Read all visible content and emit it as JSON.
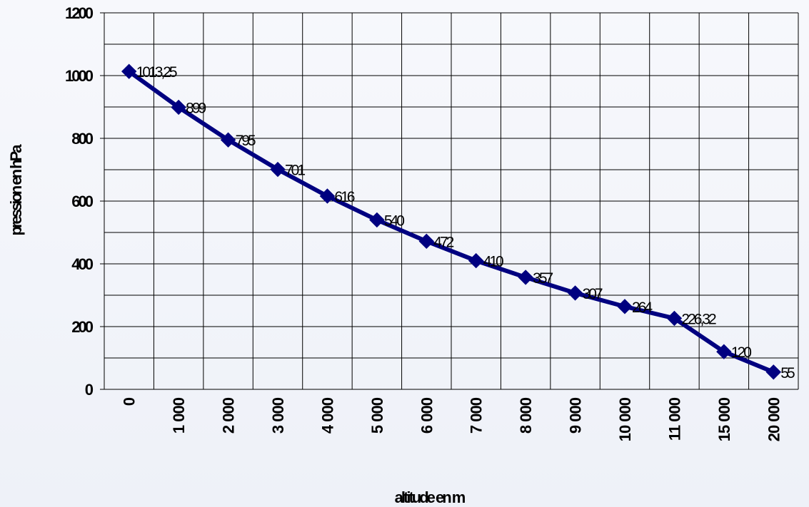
{
  "chart_data": {
    "type": "line",
    "xlabel": "altitude en m",
    "ylabel": "pression en hPa",
    "categories": [
      "0",
      "1 000",
      "2 000",
      "3 000",
      "4 000",
      "5 000",
      "6 000",
      "7 000",
      "8 000",
      "9 000",
      "10 000",
      "11 000",
      "15 000",
      "20 000"
    ],
    "series": [
      {
        "values": [
          1013.25,
          899,
          795,
          701,
          616,
          540,
          472,
          410,
          357,
          307,
          264,
          226.32,
          120,
          55
        ],
        "labels": [
          "1013,25",
          "899",
          "795",
          "701",
          "616",
          "540",
          "472",
          "410",
          "357",
          "307",
          "264",
          "226,32",
          "120",
          "55"
        ],
        "color": "#000080",
        "marker": "diamond"
      }
    ],
    "y_ticks": [
      "0",
      "200",
      "400",
      "600",
      "800",
      "1000",
      "1200"
    ],
    "ylim": [
      0,
      1200
    ],
    "y_minor_step": 100,
    "grid": true,
    "legend": false
  }
}
